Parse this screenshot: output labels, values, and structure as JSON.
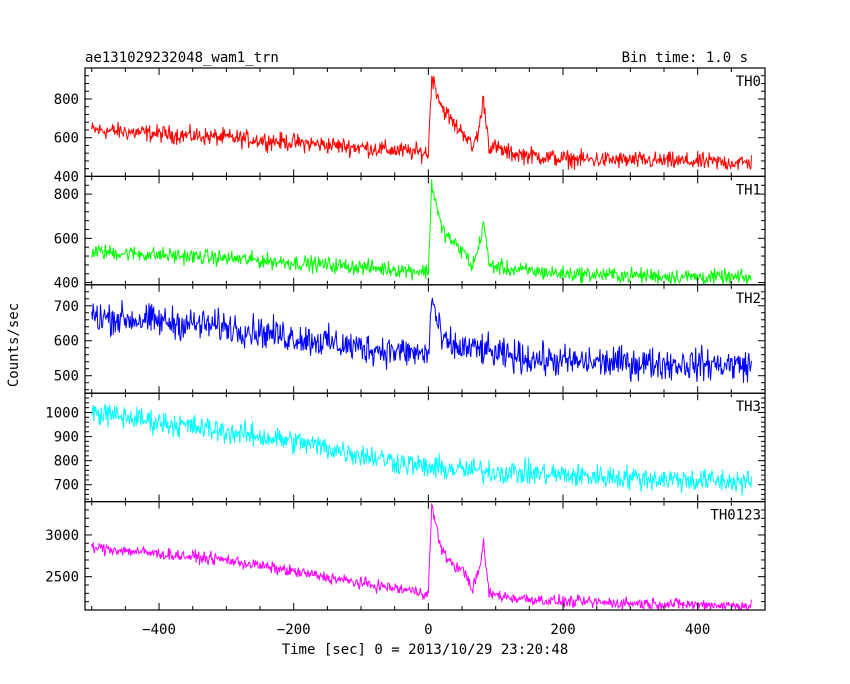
{
  "chart_data": {
    "type": "line",
    "title": "ae131029232048_wam1_trn",
    "subtitle": "Bin time: 1.0 s",
    "xlabel": "Time [sec] 0 = 2013/10/29 23:20:48",
    "ylabel": "Counts/sec",
    "xlim": [
      -510,
      500
    ],
    "x_ticks": [
      -400,
      -200,
      0,
      200,
      400
    ],
    "x_tick_labels": [
      "−400",
      "−200",
      "0",
      "200",
      "400"
    ],
    "panels": [
      {
        "name": "TH0",
        "color": "#ff0000",
        "ylim": [
          400,
          960
        ],
        "y_ticks": [
          400,
          600,
          800
        ],
        "y_tick_labels": [
          "400",
          "600",
          "800"
        ],
        "profile": {
          "x": [
            -500,
            -300,
            -100,
            0,
            5,
            20,
            40,
            55,
            65,
            75,
            82,
            90,
            120,
            200,
            480
          ],
          "y": [
            640,
            600,
            550,
            520,
            920,
            760,
            660,
            620,
            540,
            640,
            800,
            560,
            520,
            490,
            470
          ],
          "noise": 45
        }
      },
      {
        "name": "TH1",
        "color": "#00ff00",
        "ylim": [
          390,
          880
        ],
        "y_ticks": [
          400,
          600,
          800
        ],
        "y_tick_labels": [
          "400",
          "600",
          "800"
        ],
        "profile": {
          "x": [
            -500,
            -300,
            -100,
            0,
            5,
            20,
            40,
            55,
            65,
            75,
            82,
            90,
            120,
            200,
            480
          ],
          "y": [
            540,
            510,
            470,
            450,
            850,
            640,
            570,
            530,
            470,
            560,
            680,
            480,
            460,
            440,
            420
          ],
          "noise": 35
        }
      },
      {
        "name": "TH2",
        "color": "#0000ff",
        "ylim": [
          450,
          760
        ],
        "y_ticks": [
          500,
          600,
          700
        ],
        "y_tick_labels": [
          "500",
          "600",
          "700"
        ],
        "profile": {
          "x": [
            -500,
            -300,
            -100,
            0,
            5,
            20,
            40,
            80,
            100,
            200,
            480
          ],
          "y": [
            670,
            640,
            580,
            560,
            720,
            600,
            580,
            575,
            560,
            540,
            530
          ],
          "noise": 45
        }
      },
      {
        "name": "TH3",
        "color": "#00ffff",
        "ylim": [
          630,
          1080
        ],
        "y_ticks": [
          700,
          800,
          900,
          1000
        ],
        "y_tick_labels": [
          "700",
          "800",
          "900",
          "1000"
        ],
        "profile": {
          "x": [
            -500,
            -400,
            -200,
            0,
            200,
            480
          ],
          "y": [
            1000,
            960,
            880,
            770,
            740,
            710
          ],
          "noise": 50
        }
      },
      {
        "name": "TH0123",
        "color": "#ff00ff",
        "ylim": [
          2100,
          3400
        ],
        "y_ticks": [
          2500,
          3000
        ],
        "y_tick_labels": [
          "2500",
          "3000"
        ],
        "profile": {
          "x": [
            -500,
            -300,
            -100,
            0,
            5,
            20,
            40,
            55,
            65,
            75,
            82,
            90,
            120,
            200,
            480
          ],
          "y": [
            2850,
            2700,
            2420,
            2300,
            3350,
            2800,
            2620,
            2550,
            2350,
            2550,
            2900,
            2300,
            2250,
            2200,
            2150
          ],
          "noise": 70
        }
      }
    ]
  }
}
